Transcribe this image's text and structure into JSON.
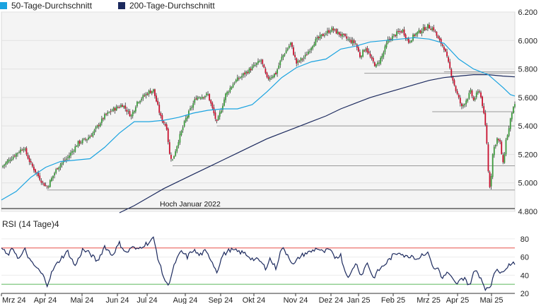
{
  "legend": {
    "ma50": {
      "label": "50-Tage-Durchschnitt",
      "color": "#1aa3e0"
    },
    "ma200": {
      "label": "200-Tage-Durchschnitt",
      "color": "#1c2a5e"
    }
  },
  "chart_data": [
    {
      "type": "candlestick",
      "yticks": [
        "6.200",
        "6.000",
        "5.800",
        "5.600",
        "5.400",
        "5.200",
        "5.000",
        "4.800"
      ],
      "ylim": [
        4800,
        6200
      ],
      "xlabels": [
        "Mrz 24",
        "Apr 24",
        "Mai 24",
        "Jun 24",
        "Jul 24",
        "Aug 24",
        "Sep 24",
        "Okt 24",
        "Nov 24",
        "Dez 24",
        "Jan 25",
        "Feb 25",
        "Mrz 25",
        "Apr 25",
        "Mai 25"
      ],
      "annotation": "Hoch Januar 2022",
      "grid": true,
      "up_color": "#3c9a3c",
      "down_color": "#c8102e",
      "price_anchors": [
        [
          0,
          5110
        ],
        [
          5,
          5160
        ],
        [
          15,
          5250
        ],
        [
          20,
          5130
        ],
        [
          28,
          5000
        ],
        [
          31,
          4970
        ],
        [
          38,
          5110
        ],
        [
          45,
          5180
        ],
        [
          52,
          5280
        ],
        [
          58,
          5310
        ],
        [
          62,
          5350
        ],
        [
          70,
          5470
        ],
        [
          75,
          5510
        ],
        [
          82,
          5550
        ],
        [
          88,
          5470
        ],
        [
          92,
          5570
        ],
        [
          100,
          5640
        ],
        [
          103,
          5650
        ],
        [
          108,
          5460
        ],
        [
          112,
          5390
        ],
        [
          114,
          5200
        ],
        [
          116,
          5160
        ],
        [
          120,
          5300
        ],
        [
          125,
          5450
        ],
        [
          132,
          5600
        ],
        [
          140,
          5620
        ],
        [
          146,
          5420
        ],
        [
          152,
          5620
        ],
        [
          158,
          5710
        ],
        [
          164,
          5760
        ],
        [
          170,
          5810
        ],
        [
          176,
          5860
        ],
        [
          180,
          5730
        ],
        [
          186,
          5770
        ],
        [
          190,
          5880
        ],
        [
          196,
          5980
        ],
        [
          200,
          5840
        ],
        [
          206,
          5890
        ],
        [
          212,
          5990
        ],
        [
          218,
          6040
        ],
        [
          224,
          6080
        ],
        [
          230,
          6040
        ],
        [
          236,
          6000
        ],
        [
          240,
          5980
        ],
        [
          243,
          5890
        ],
        [
          247,
          5950
        ],
        [
          251,
          5860
        ],
        [
          254,
          5820
        ],
        [
          258,
          5890
        ],
        [
          262,
          6000
        ],
        [
          268,
          6050
        ],
        [
          272,
          6070
        ],
        [
          276,
          5990
        ],
        [
          280,
          6040
        ],
        [
          286,
          6080
        ],
        [
          289,
          6100
        ],
        [
          293,
          6080
        ],
        [
          296,
          6010
        ],
        [
          300,
          5950
        ],
        [
          304,
          5800
        ],
        [
          308,
          5650
        ],
        [
          312,
          5530
        ],
        [
          316,
          5600
        ],
        [
          318,
          5640
        ],
        [
          320,
          5580
        ],
        [
          322,
          5620
        ],
        [
          324,
          5650
        ],
        [
          326,
          5550
        ],
        [
          328,
          5400
        ],
        [
          329,
          5280
        ],
        [
          330,
          5080
        ],
        [
          331,
          4980
        ],
        [
          332,
          5060
        ],
        [
          333,
          5200
        ],
        [
          334,
          5250
        ],
        [
          336,
          5310
        ],
        [
          338,
          5280
        ],
        [
          340,
          5130
        ],
        [
          342,
          5300
        ],
        [
          344,
          5380
        ],
        [
          346,
          5500
        ],
        [
          348,
          5540
        ]
      ],
      "ma50": [
        [
          0,
          4880
        ],
        [
          10,
          4940
        ],
        [
          20,
          5040
        ],
        [
          30,
          5110
        ],
        [
          40,
          5150
        ],
        [
          50,
          5160
        ],
        [
          60,
          5170
        ],
        [
          70,
          5250
        ],
        [
          80,
          5350
        ],
        [
          90,
          5430
        ],
        [
          100,
          5430
        ],
        [
          110,
          5440
        ],
        [
          120,
          5460
        ],
        [
          130,
          5490
        ],
        [
          140,
          5510
        ],
        [
          150,
          5520
        ],
        [
          160,
          5520
        ],
        [
          170,
          5550
        ],
        [
          180,
          5640
        ],
        [
          190,
          5740
        ],
        [
          200,
          5810
        ],
        [
          210,
          5850
        ],
        [
          220,
          5870
        ],
        [
          230,
          5940
        ],
        [
          240,
          5960
        ],
        [
          250,
          5990
        ],
        [
          260,
          6000
        ],
        [
          270,
          6010
        ],
        [
          280,
          6020
        ],
        [
          290,
          6010
        ],
        [
          300,
          5980
        ],
        [
          310,
          5870
        ],
        [
          320,
          5800
        ],
        [
          330,
          5760
        ],
        [
          340,
          5670
        ],
        [
          345,
          5620
        ],
        [
          348,
          5610
        ]
      ],
      "ma200": [
        [
          80,
          4790
        ],
        [
          90,
          4840
        ],
        [
          100,
          4900
        ],
        [
          110,
          4960
        ],
        [
          120,
          5010
        ],
        [
          130,
          5060
        ],
        [
          140,
          5110
        ],
        [
          150,
          5160
        ],
        [
          160,
          5210
        ],
        [
          170,
          5260
        ],
        [
          180,
          5310
        ],
        [
          190,
          5350
        ],
        [
          200,
          5390
        ],
        [
          210,
          5430
        ],
        [
          220,
          5470
        ],
        [
          230,
          5520
        ],
        [
          240,
          5560
        ],
        [
          250,
          5600
        ],
        [
          260,
          5630
        ],
        [
          270,
          5660
        ],
        [
          280,
          5690
        ],
        [
          290,
          5720
        ],
        [
          300,
          5740
        ],
        [
          310,
          5750
        ],
        [
          320,
          5760
        ],
        [
          330,
          5760
        ],
        [
          340,
          5750
        ],
        [
          348,
          5745
        ]
      ],
      "support_lines": [
        {
          "y": 4950,
          "x_from": 31
        },
        {
          "y": 5120,
          "x_from": 116
        },
        {
          "y": 5400,
          "x_from": 146
        },
        {
          "y": 5500,
          "x_from": 292
        },
        {
          "y": 5770,
          "x_from": 246
        },
        {
          "y": 5780,
          "x_from": 300
        }
      ],
      "hoch_line": 4820,
      "n_days": 349
    },
    {
      "type": "line",
      "title": "RSI (14 Tage)4",
      "yticks": [
        "80",
        "60",
        "40",
        "20"
      ],
      "ylim": [
        20,
        83
      ],
      "upper_band": 70,
      "lower_band": 30,
      "upper_color": "#e8504a",
      "lower_color": "#5bb85b",
      "line_color": "#1c2a5e",
      "rsi_anchors": [
        [
          0,
          70
        ],
        [
          4,
          62
        ],
        [
          8,
          69
        ],
        [
          12,
          58
        ],
        [
          16,
          68
        ],
        [
          20,
          54
        ],
        [
          24,
          48
        ],
        [
          28,
          40
        ],
        [
          31,
          30
        ],
        [
          35,
          46
        ],
        [
          40,
          58
        ],
        [
          45,
          66
        ],
        [
          50,
          50
        ],
        [
          55,
          68
        ],
        [
          60,
          64
        ],
        [
          65,
          55
        ],
        [
          70,
          72
        ],
        [
          75,
          62
        ],
        [
          80,
          75
        ],
        [
          85,
          64
        ],
        [
          88,
          71
        ],
        [
          92,
          68
        ],
        [
          96,
          73
        ],
        [
          100,
          76
        ],
        [
          103,
          81
        ],
        [
          106,
          60
        ],
        [
          108,
          48
        ],
        [
          110,
          38
        ],
        [
          112,
          30
        ],
        [
          114,
          33
        ],
        [
          118,
          55
        ],
        [
          122,
          66
        ],
        [
          126,
          60
        ],
        [
          130,
          68
        ],
        [
          134,
          62
        ],
        [
          138,
          66
        ],
        [
          142,
          58
        ],
        [
          146,
          44
        ],
        [
          150,
          62
        ],
        [
          155,
          68
        ],
        [
          160,
          66
        ],
        [
          165,
          64
        ],
        [
          170,
          58
        ],
        [
          175,
          56
        ],
        [
          179,
          48
        ],
        [
          182,
          58
        ],
        [
          186,
          48
        ],
        [
          190,
          70
        ],
        [
          194,
          63
        ],
        [
          198,
          51
        ],
        [
          202,
          60
        ],
        [
          206,
          64
        ],
        [
          210,
          66
        ],
        [
          214,
          70
        ],
        [
          218,
          65
        ],
        [
          222,
          68
        ],
        [
          226,
          60
        ],
        [
          230,
          62
        ],
        [
          233,
          44
        ],
        [
          236,
          38
        ],
        [
          240,
          54
        ],
        [
          244,
          40
        ],
        [
          248,
          54
        ],
        [
          252,
          37
        ],
        [
          256,
          46
        ],
        [
          260,
          52
        ],
        [
          265,
          61
        ],
        [
          270,
          66
        ],
        [
          274,
          60
        ],
        [
          278,
          62
        ],
        [
          282,
          58
        ],
        [
          286,
          64
        ],
        [
          290,
          63
        ],
        [
          293,
          46
        ],
        [
          296,
          48
        ],
        [
          299,
          36
        ],
        [
          302,
          43
        ],
        [
          305,
          37
        ],
        [
          308,
          30
        ],
        [
          311,
          34
        ],
        [
          314,
          38
        ],
        [
          317,
          28
        ],
        [
          320,
          42
        ],
        [
          322,
          45
        ],
        [
          325,
          37
        ],
        [
          328,
          26
        ],
        [
          330,
          24
        ],
        [
          332,
          30
        ],
        [
          334,
          44
        ],
        [
          336,
          48
        ],
        [
          338,
          40
        ],
        [
          340,
          46
        ],
        [
          343,
          50
        ],
        [
          346,
          54
        ],
        [
          348,
          54
        ]
      ]
    }
  ]
}
